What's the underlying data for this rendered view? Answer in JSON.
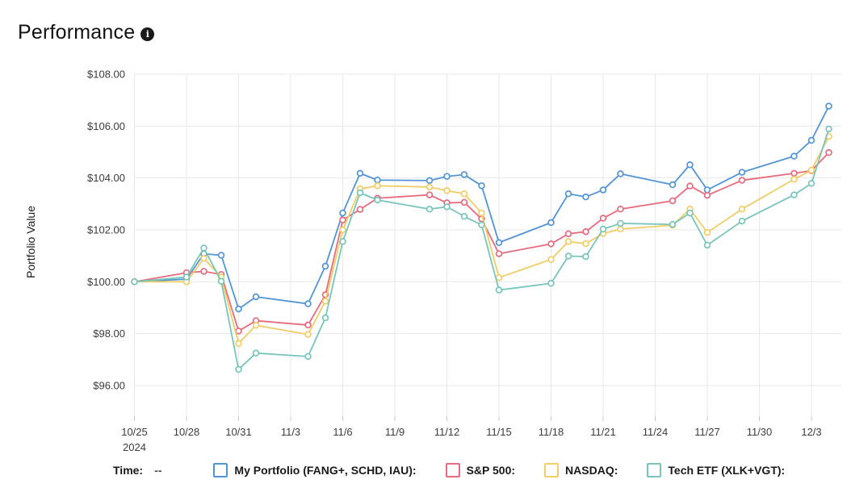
{
  "header": {
    "title": "Performance",
    "info_icon": "i"
  },
  "legend": {
    "time_label": "Time:",
    "time_value": "--",
    "items": [
      {
        "label": "My Portfolio (FANG+, SCHD, IAU):",
        "color": "#5295D6"
      },
      {
        "label": "S&P 500:",
        "color": "#E86A7D"
      },
      {
        "label": "NASDAQ:",
        "color": "#F0CD66"
      },
      {
        "label": "Tech ETF (XLK+VGT):",
        "color": "#78C5BC"
      }
    ]
  },
  "chart_data": {
    "type": "line",
    "title": "Performance",
    "xlabel": "",
    "ylabel": "Portfolio Value",
    "ylim": [
      94.8,
      108
    ],
    "grid": true,
    "legend_position": "bottom",
    "marker": "open-circle",
    "year_label": "2024",
    "y_ticks": [
      96,
      98,
      100,
      102,
      104,
      106,
      108
    ],
    "y_tick_labels": [
      "$96.00",
      "$98.00",
      "$100.00",
      "$102.00",
      "$104.00",
      "$106.00",
      "$108.00"
    ],
    "x_tick_labels": [
      "10/25",
      "10/28",
      "10/31",
      "11/3",
      "11/6",
      "11/9",
      "11/12",
      "11/15",
      "11/18",
      "11/21",
      "11/24",
      "11/27",
      "11/30",
      "12/3"
    ],
    "x_tick_days": [
      0,
      3,
      6,
      9,
      12,
      15,
      18,
      21,
      24,
      27,
      30,
      33,
      36,
      39
    ],
    "x": [
      "10/25",
      "10/28",
      "10/29",
      "10/30",
      "10/31",
      "11/1",
      "11/4",
      "11/5",
      "11/6",
      "11/7",
      "11/8",
      "11/11",
      "11/12",
      "11/13",
      "11/14",
      "11/15",
      "11/18",
      "11/19",
      "11/20",
      "11/21",
      "11/22",
      "11/25",
      "11/26",
      "11/27",
      "11/29",
      "12/2",
      "12/3",
      "12/4"
    ],
    "x_day_index": [
      0,
      3,
      4,
      5,
      6,
      7,
      10,
      11,
      12,
      13,
      14,
      17,
      18,
      19,
      20,
      21,
      24,
      25,
      26,
      27,
      28,
      31,
      32,
      33,
      35,
      38,
      39,
      40
    ],
    "series": [
      {
        "name": "My Portfolio (FANG+, SCHD, IAU)",
        "color": "#5295D6",
        "values": [
          100.0,
          100.1,
          101.08,
          101.02,
          98.95,
          99.42,
          99.15,
          100.6,
          102.65,
          104.18,
          103.92,
          103.9,
          104.06,
          104.13,
          103.7,
          101.51,
          102.28,
          103.39,
          103.27,
          103.54,
          104.16,
          103.74,
          104.51,
          103.54,
          104.22,
          104.84,
          105.45,
          106.77
        ]
      },
      {
        "name": "S&P 500",
        "color": "#E86A7D",
        "values": [
          100.0,
          100.35,
          100.4,
          100.28,
          98.1,
          98.5,
          98.33,
          99.5,
          102.38,
          102.79,
          103.22,
          103.35,
          103.04,
          103.06,
          102.42,
          101.08,
          101.46,
          101.85,
          101.93,
          102.45,
          102.8,
          103.12,
          103.69,
          103.33,
          103.91,
          104.18,
          104.28,
          104.98
        ]
      },
      {
        "name": "NASDAQ",
        "color": "#F0CD66",
        "values": [
          100.0,
          100.0,
          100.9,
          100.18,
          97.62,
          98.32,
          97.97,
          99.25,
          102.0,
          103.58,
          103.7,
          103.65,
          103.51,
          103.39,
          102.65,
          100.16,
          100.86,
          101.55,
          101.47,
          101.86,
          102.03,
          102.18,
          102.8,
          101.9,
          102.8,
          103.95,
          104.3,
          105.6
        ]
      },
      {
        "name": "Tech ETF (XLK+VGT)",
        "color": "#78C5BC",
        "values": [
          100.0,
          100.18,
          101.3,
          100.02,
          96.62,
          97.25,
          97.12,
          98.61,
          101.55,
          103.43,
          103.15,
          102.8,
          102.89,
          102.52,
          102.19,
          99.68,
          99.94,
          100.99,
          100.97,
          102.03,
          102.25,
          102.21,
          102.65,
          101.41,
          102.34,
          103.35,
          103.79,
          105.89
        ]
      }
    ],
    "colors": {
      "gridline": "#e8e8e8",
      "tick": "#c9c9c9",
      "axis_text": "#3c3c3c"
    }
  }
}
